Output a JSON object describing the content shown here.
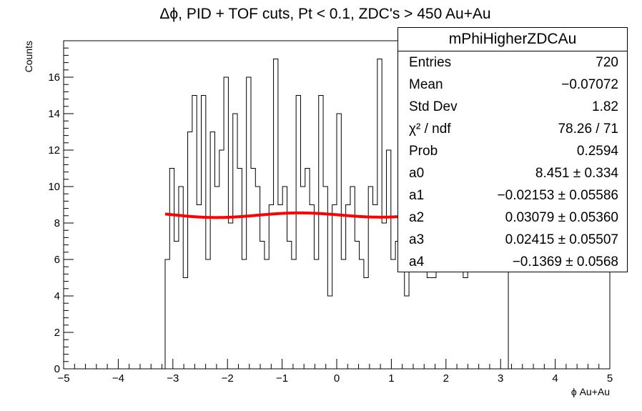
{
  "chart_data": {
    "type": "histogram",
    "title": "Δϕ, PID + TOF cuts, Pt < 0.1, ZDC's > 450 Au+Au",
    "xlabel": "ϕ Au+Au",
    "ylabel": "Counts",
    "xlim": [
      -5,
      5
    ],
    "ylim": [
      0,
      18
    ],
    "x_major_ticks": [
      -5,
      -4,
      -3,
      -2,
      -1,
      0,
      1,
      2,
      3,
      4,
      5
    ],
    "y_major_ticks": [
      0,
      2,
      4,
      6,
      8,
      10,
      12,
      14,
      16
    ],
    "grid": false,
    "bins": {
      "min": -3.1416,
      "max": 3.1416,
      "counts": [
        6,
        11,
        7,
        10,
        5,
        13,
        15,
        9,
        15,
        6,
        13,
        10,
        12,
        16,
        8,
        14,
        11,
        6,
        16,
        11,
        10,
        7,
        6,
        9,
        17,
        9,
        10,
        7,
        6,
        15,
        10,
        11,
        9,
        6,
        15,
        10,
        4,
        9,
        14,
        6,
        9,
        10,
        7,
        6,
        5,
        10,
        9,
        17,
        8,
        12,
        6,
        7,
        12,
        4,
        10,
        7,
        12,
        10,
        5,
        5,
        6,
        8,
        9,
        6,
        6,
        7,
        5,
        8,
        7,
        6,
        8,
        7,
        9,
        6,
        11,
        8
      ],
      "color": "#000000"
    },
    "fit": {
      "function": "a0 + a1*cos(x) + a2*sin(x) + a3*cos(2x) + a4*sin(2x)",
      "color": "#ff0000",
      "params": [
        8.451,
        -0.02153,
        0.03079,
        0.02415,
        -0.1369
      ]
    }
  },
  "stats": {
    "name": "mPhiHigherZDCAu",
    "rows": [
      {
        "label": "Entries",
        "value": "720"
      },
      {
        "label": "Mean",
        "value": "−0.07072"
      },
      {
        "label": "Std Dev",
        "value": "1.82"
      },
      {
        "label": "χ² / ndf",
        "value": "78.26 / 71"
      },
      {
        "label": "Prob",
        "value": "0.2594"
      },
      {
        "label": "a0",
        "value": "8.451 ± 0.334"
      },
      {
        "label": "a1",
        "value": "−0.02153 ± 0.05586"
      },
      {
        "label": "a2",
        "value": "0.03079 ± 0.05360"
      },
      {
        "label": "a3",
        "value": "0.02415 ± 0.05507"
      },
      {
        "label": "a4",
        "value": "−0.1369 ± 0.0568"
      }
    ]
  }
}
